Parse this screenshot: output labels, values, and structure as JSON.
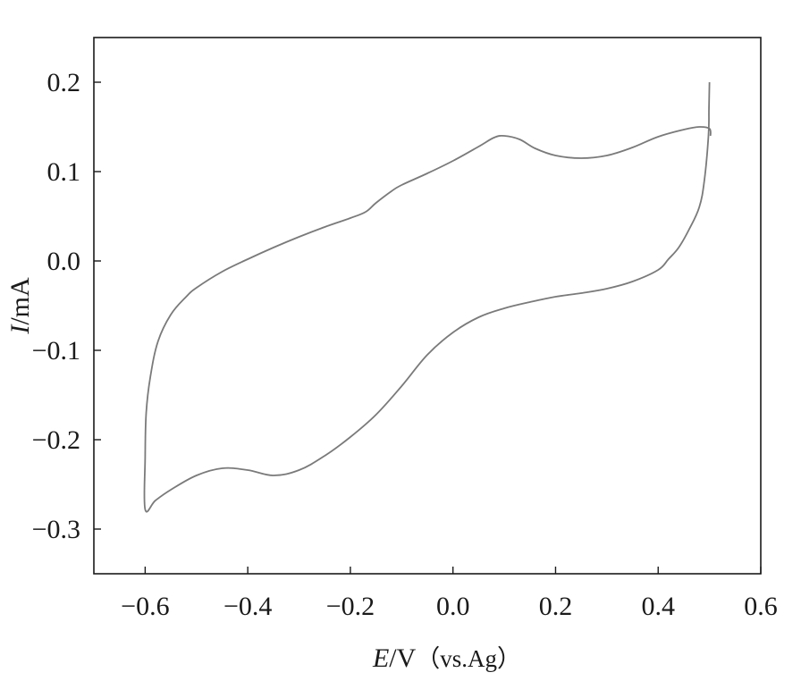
{
  "chart_data": {
    "type": "line",
    "title": "",
    "xlabel": {
      "symbol": "E",
      "unit": "/V",
      "ref": "（vs.Ag）"
    },
    "ylabel": {
      "symbol": "I",
      "unit": "/mA"
    },
    "xlim": [
      -0.7,
      0.6
    ],
    "ylim": [
      -0.35,
      0.25
    ],
    "xticks": [
      -0.6,
      -0.4,
      -0.2,
      0.0,
      0.2,
      0.4,
      0.6
    ],
    "xtick_labels": [
      "−0.6",
      "−0.4",
      "−0.2",
      "0.0",
      "0.2",
      "0.4",
      "0.6"
    ],
    "yticks": [
      0.2,
      0.1,
      0.0,
      -0.1,
      -0.2,
      -0.3
    ],
    "ytick_labels": [
      "0.2",
      "0.1",
      "0.0",
      "−0.1",
      "−0.2",
      "−0.3"
    ],
    "grid": false,
    "legend": "none",
    "line_color": "#7a7a7a",
    "axis_color": "#1a1a1a",
    "series": [
      {
        "points": [
          [
            0.5,
            0.2
          ],
          [
            0.499,
            0.17
          ],
          [
            0.498,
            0.14
          ],
          [
            0.49,
            0.09
          ],
          [
            0.48,
            0.06
          ],
          [
            0.46,
            0.035
          ],
          [
            0.44,
            0.015
          ],
          [
            0.42,
            0.002
          ],
          [
            0.4,
            -0.01
          ],
          [
            0.35,
            -0.023
          ],
          [
            0.3,
            -0.031
          ],
          [
            0.25,
            -0.036
          ],
          [
            0.2,
            -0.04
          ],
          [
            0.15,
            -0.046
          ],
          [
            0.1,
            -0.053
          ],
          [
            0.05,
            -0.063
          ],
          [
            0.0,
            -0.08
          ],
          [
            -0.05,
            -0.105
          ],
          [
            -0.1,
            -0.14
          ],
          [
            -0.15,
            -0.172
          ],
          [
            -0.2,
            -0.197
          ],
          [
            -0.25,
            -0.218
          ],
          [
            -0.3,
            -0.234
          ],
          [
            -0.35,
            -0.24
          ],
          [
            -0.4,
            -0.234
          ],
          [
            -0.45,
            -0.232
          ],
          [
            -0.5,
            -0.24
          ],
          [
            -0.55,
            -0.256
          ],
          [
            -0.58,
            -0.268
          ],
          [
            -0.6,
            -0.278
          ],
          [
            -0.6,
            -0.22
          ],
          [
            -0.598,
            -0.17
          ],
          [
            -0.59,
            -0.13
          ],
          [
            -0.575,
            -0.09
          ],
          [
            -0.55,
            -0.06
          ],
          [
            -0.52,
            -0.04
          ],
          [
            -0.5,
            -0.03
          ],
          [
            -0.45,
            -0.012
          ],
          [
            -0.4,
            0.002
          ],
          [
            -0.35,
            0.015
          ],
          [
            -0.3,
            0.027
          ],
          [
            -0.25,
            0.038
          ],
          [
            -0.2,
            0.048
          ],
          [
            -0.17,
            0.055
          ],
          [
            -0.15,
            0.065
          ],
          [
            -0.12,
            0.078
          ],
          [
            -0.1,
            0.085
          ],
          [
            -0.05,
            0.098
          ],
          [
            0.0,
            0.112
          ],
          [
            0.05,
            0.128
          ],
          [
            0.08,
            0.138
          ],
          [
            0.1,
            0.14
          ],
          [
            0.13,
            0.136
          ],
          [
            0.16,
            0.126
          ],
          [
            0.2,
            0.118
          ],
          [
            0.25,
            0.115
          ],
          [
            0.3,
            0.118
          ],
          [
            0.35,
            0.127
          ],
          [
            0.4,
            0.139
          ],
          [
            0.45,
            0.147
          ],
          [
            0.48,
            0.15
          ],
          [
            0.5,
            0.148
          ],
          [
            0.502,
            0.14
          ]
        ]
      }
    ]
  }
}
